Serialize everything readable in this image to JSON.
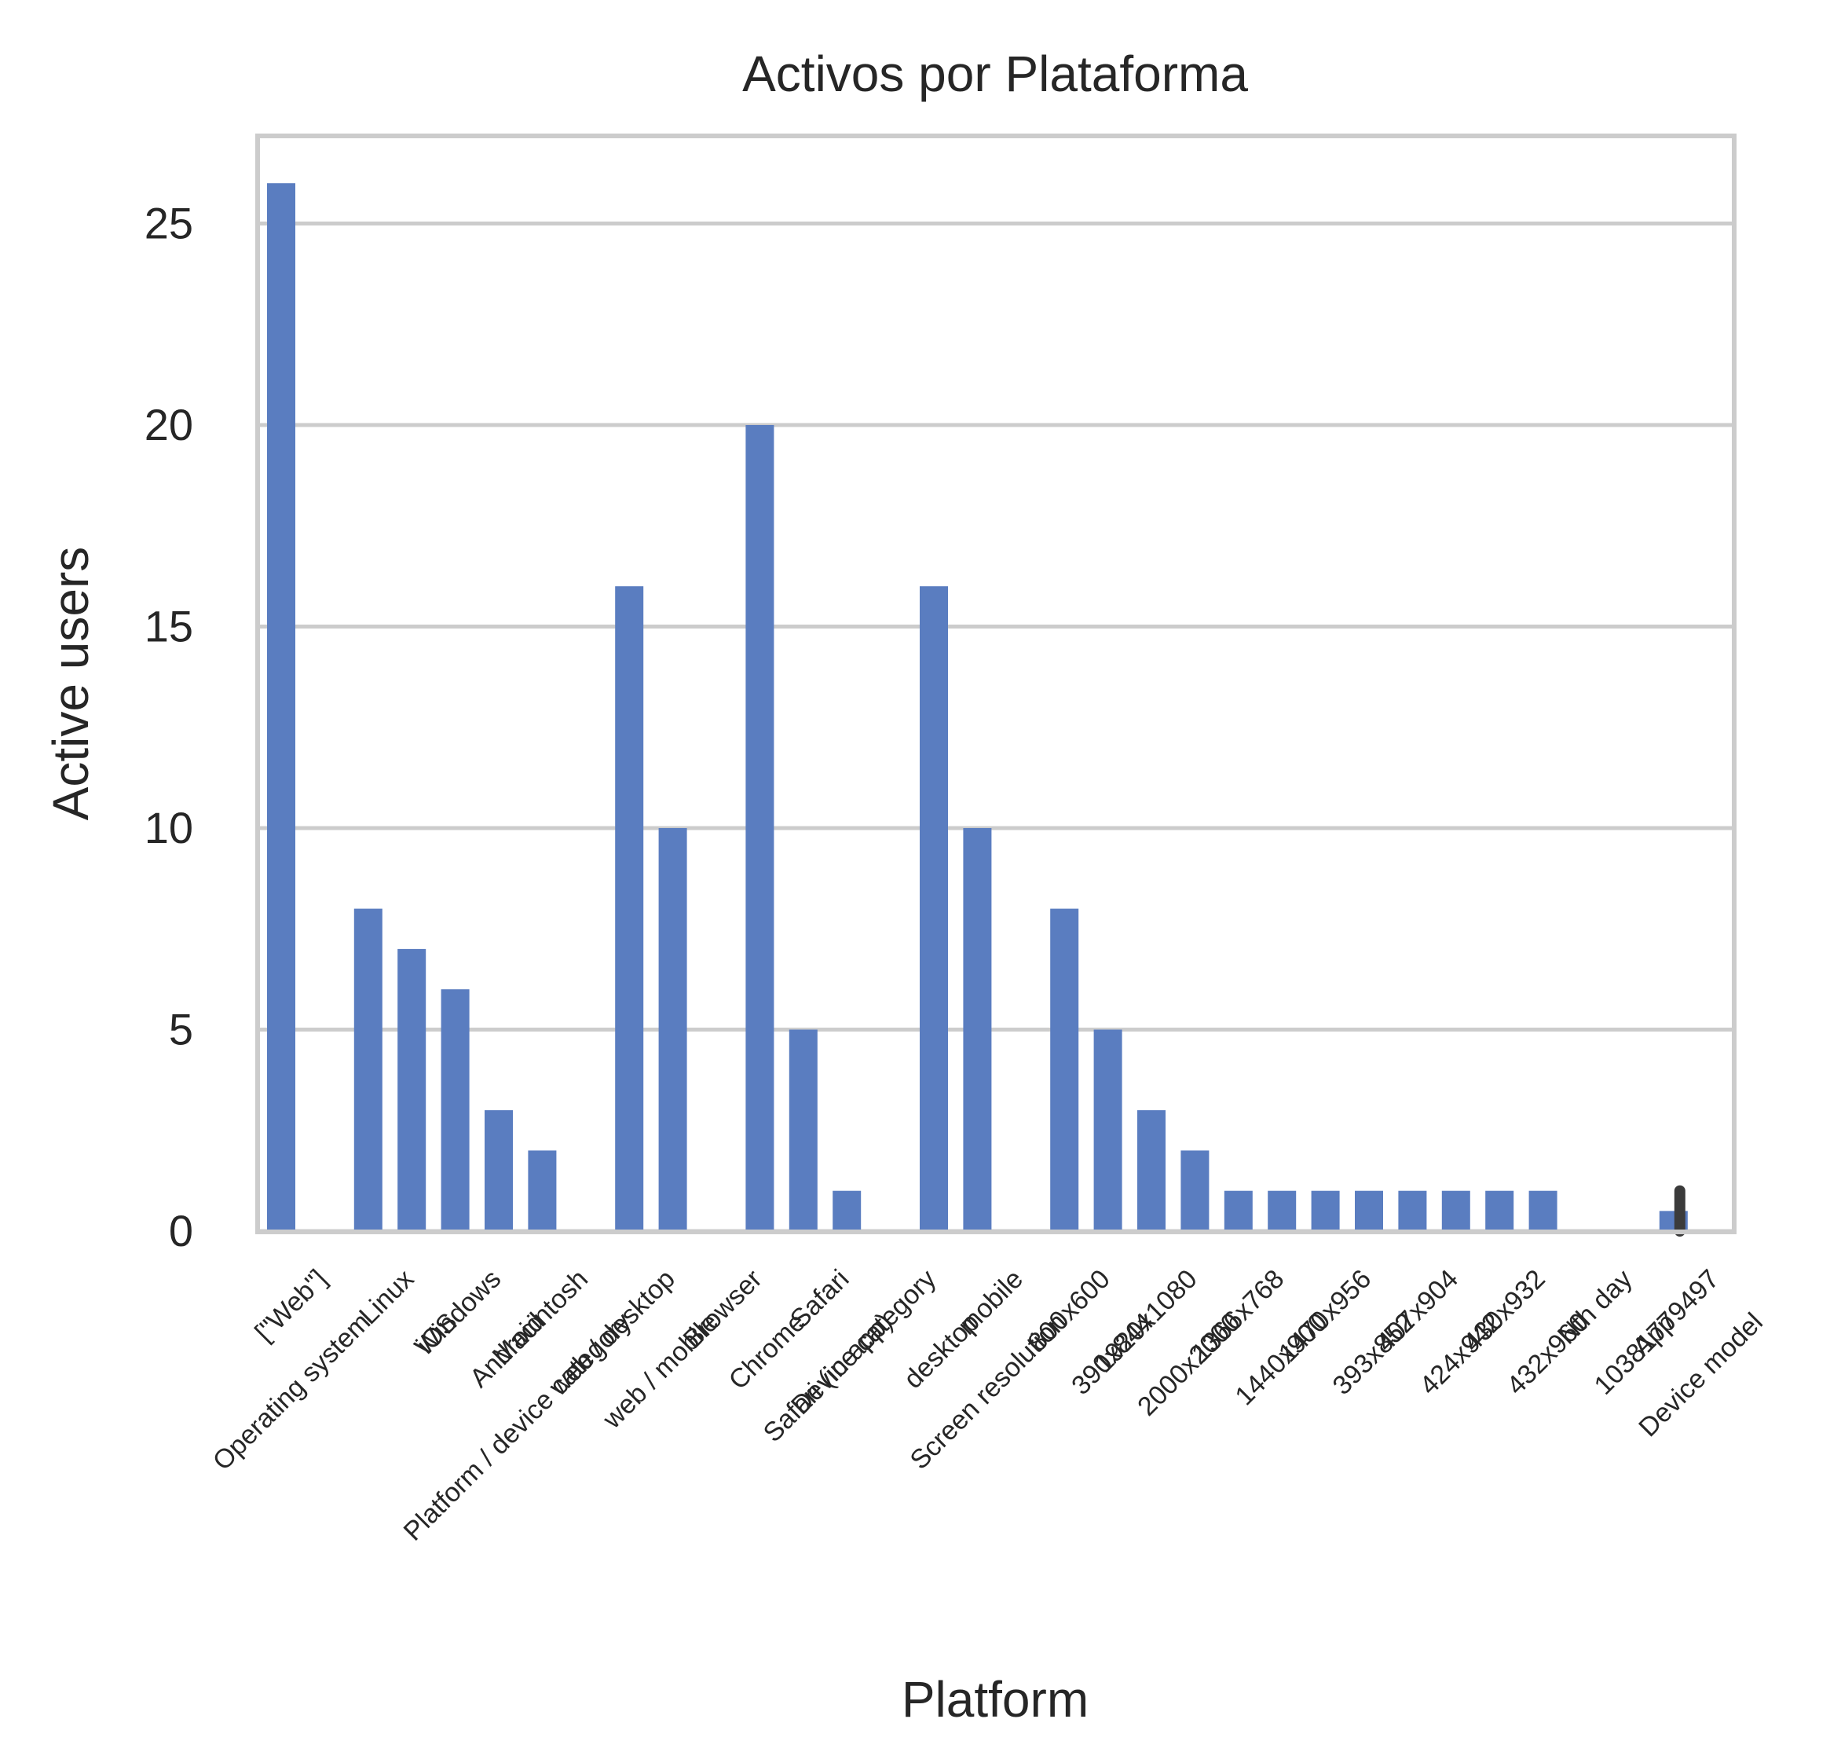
{
  "chart_data": {
    "type": "bar",
    "title": "Activos por Plataforma",
    "xlabel": "Platform",
    "ylabel": "Active users",
    "ylim": [
      0,
      27.3
    ],
    "yticks": [
      0,
      5,
      10,
      15,
      20,
      25
    ],
    "grid": "horizontal",
    "bar_color": "#5a7dc0",
    "categories": [
      "[\"Web\"]",
      "Operating system",
      "Linux",
      "iOS",
      "Windows",
      "Android",
      "Macintosh",
      "Platform / device category",
      "web / desktop",
      "web / mobile",
      "Browser",
      "Chrome",
      "Safari",
      "Safari (in-app)",
      "Device category",
      "desktop",
      "mobile",
      "Screen resolution",
      "800x600",
      "390x844",
      "1920x1080",
      "2000x2000",
      "1366x768",
      "1440x900",
      "1470x956",
      "393x852",
      "407x904",
      "424x942",
      "430x932",
      "432x960",
      "Nth day",
      "App",
      "10381779497",
      "Device model"
    ],
    "values": [
      26,
      0,
      8,
      7,
      6,
      3,
      2,
      0,
      16,
      10,
      0,
      20,
      5,
      1,
      0,
      16,
      10,
      0,
      8,
      5,
      3,
      2,
      1,
      1,
      1,
      1,
      1,
      1,
      1,
      1,
      0,
      0,
      0.5,
      0
    ],
    "error_bars": [
      {
        "category": "10381779497",
        "low": 0,
        "high": 1
      }
    ]
  }
}
